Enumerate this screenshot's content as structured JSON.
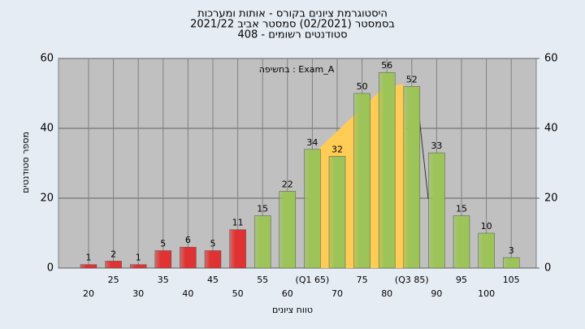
{
  "chart_data": {
    "type": "bar",
    "title": "היסטוגרמת ציונים בקורס - אותות ומערכות",
    "subtitle": "בסמסטר (02/2021) סמסטר אביב 2021/22",
    "subtitle2": "סטודנטים רשומים - 408",
    "annotation": "Exam_A : בחשיפה",
    "y_label": "מספר סטודנטים",
    "x_label": "טווח ציונים",
    "categories": [
      "20",
      "25",
      "30",
      "35",
      "40",
      "45",
      "50",
      "55",
      "60",
      "(Q1 65)",
      "70",
      "75",
      "80",
      "(Q3 85)",
      "90",
      "95",
      "100",
      "105"
    ],
    "values": [
      1,
      2,
      1,
      5,
      6,
      5,
      11,
      15,
      22,
      34,
      32,
      50,
      56,
      52,
      33,
      15,
      10,
      3
    ],
    "colors": [
      "#e03232",
      "#e03232",
      "#e03232",
      "#e03232",
      "#e03232",
      "#e03232",
      "#e03232",
      "#9cc458",
      "#9cc458",
      "#9cc458",
      "#9cc458",
      "#9cc458",
      "#9cc458",
      "#9cc458",
      "#9cc458",
      "#9cc458",
      "#9cc458",
      "#9cc458"
    ],
    "ylim": [
      0,
      60
    ],
    "yticks": [
      0,
      20,
      40,
      60
    ],
    "y2lim": [
      0,
      60
    ],
    "y2ticks": [
      0,
      20,
      40,
      60
    ],
    "grid": true
  }
}
